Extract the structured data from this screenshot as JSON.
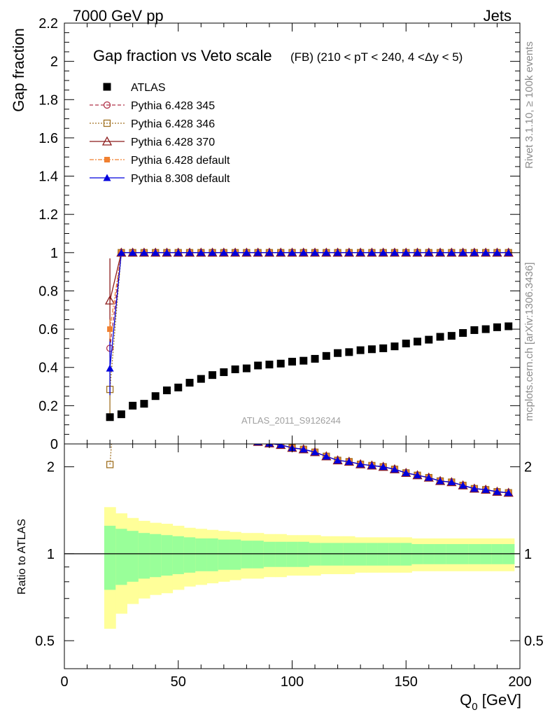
{
  "header": {
    "left": "7000 GeV pp",
    "right": "Jets"
  },
  "side": {
    "rivet": "Rivet 3.1.10, ≥ 100k events",
    "mcplots": "mcplots.cern.ch [arXiv:1306.3436]"
  },
  "chart_data": {
    "type": "scatter",
    "title": "Gap fraction vs Veto scale",
    "subtitle": "(FB) (210 < pT < 240, 4 <Δy < 5)",
    "analysis_label": "ATLAS_2011_S9126244",
    "xlabel": "Q0 [GeV]",
    "ylabel": "Gap fraction",
    "ratio_ylabel": "Ratio to ATLAS",
    "xlim": [
      0,
      200
    ],
    "ylim": [
      0,
      2.2
    ],
    "ratio_ylim": [
      0.4,
      2.4
    ],
    "ratio_scale": "log",
    "x_ticks": [
      "0",
      "50",
      "100",
      "150",
      "200"
    ],
    "y_ticks": [
      "0",
      "0.2",
      "0.4",
      "0.6",
      "0.8",
      "1",
      "1.2",
      "1.4",
      "1.6",
      "1.8",
      "2",
      "2.2"
    ],
    "ratio_ticks": [
      "0.5",
      "1",
      "2"
    ],
    "legend_position": "top-left",
    "x": [
      20,
      25,
      30,
      35,
      40,
      45,
      50,
      55,
      60,
      65,
      70,
      75,
      80,
      85,
      90,
      95,
      100,
      105,
      110,
      115,
      120,
      125,
      130,
      135,
      140,
      145,
      150,
      155,
      160,
      165,
      170,
      175,
      180,
      185,
      190,
      195
    ],
    "series": [
      {
        "name": "ATLAS",
        "color": "#000000",
        "marker": "square",
        "values": [
          0.14,
          0.155,
          0.2,
          0.21,
          0.25,
          0.28,
          0.295,
          0.32,
          0.34,
          0.36,
          0.375,
          0.39,
          0.395,
          0.41,
          0.415,
          0.42,
          0.43,
          0.435,
          0.445,
          0.46,
          0.475,
          0.48,
          0.49,
          0.495,
          0.5,
          0.51,
          0.525,
          0.535,
          0.545,
          0.56,
          0.565,
          0.58,
          0.595,
          0.6,
          0.61,
          0.615
        ],
        "band_inner": [
          0.25,
          0.22,
          0.2,
          0.18,
          0.17,
          0.16,
          0.15,
          0.14,
          0.13,
          0.13,
          0.12,
          0.12,
          0.11,
          0.11,
          0.1,
          0.1,
          0.1,
          0.1,
          0.09,
          0.09,
          0.09,
          0.09,
          0.09,
          0.09,
          0.09,
          0.09,
          0.09,
          0.08,
          0.08,
          0.08,
          0.08,
          0.08,
          0.08,
          0.08,
          0.08,
          0.08
        ],
        "band_outer": [
          0.45,
          0.38,
          0.33,
          0.3,
          0.28,
          0.27,
          0.25,
          0.23,
          0.22,
          0.21,
          0.2,
          0.19,
          0.18,
          0.18,
          0.17,
          0.17,
          0.16,
          0.16,
          0.16,
          0.15,
          0.15,
          0.15,
          0.14,
          0.14,
          0.14,
          0.14,
          0.14,
          0.13,
          0.13,
          0.13,
          0.13,
          0.13,
          0.13,
          0.13,
          0.13,
          0.13
        ]
      },
      {
        "name": "Pythia 6.428 345",
        "color": "#b03048",
        "marker": "circle-open",
        "dash": "5,3",
        "first": 0.5,
        "first_err": 0.05,
        "rest": 1.0
      },
      {
        "name": "Pythia 6.428 346",
        "color": "#a07020",
        "marker": "square-open",
        "dash": "2,2",
        "first": 0.285,
        "first_err": 0.14,
        "rest": 1.0
      },
      {
        "name": "Pythia 6.428 370",
        "color": "#8b1a1a",
        "marker": "triangle-open",
        "dash": "",
        "first": 0.75,
        "first_err": 0.22,
        "rest": 1.0
      },
      {
        "name": "Pythia 6.428 default",
        "color": "#f08030",
        "marker": "square-filled",
        "dash": "6,2,2,2",
        "first": 0.6,
        "first_err": 0.05,
        "rest": 1.0
      },
      {
        "name": "Pythia 8.308 default",
        "color": "#0000dd",
        "marker": "triangle-filled",
        "dash": "",
        "first": 0.395,
        "first_err": 0.14,
        "rest": 1.0
      }
    ]
  }
}
